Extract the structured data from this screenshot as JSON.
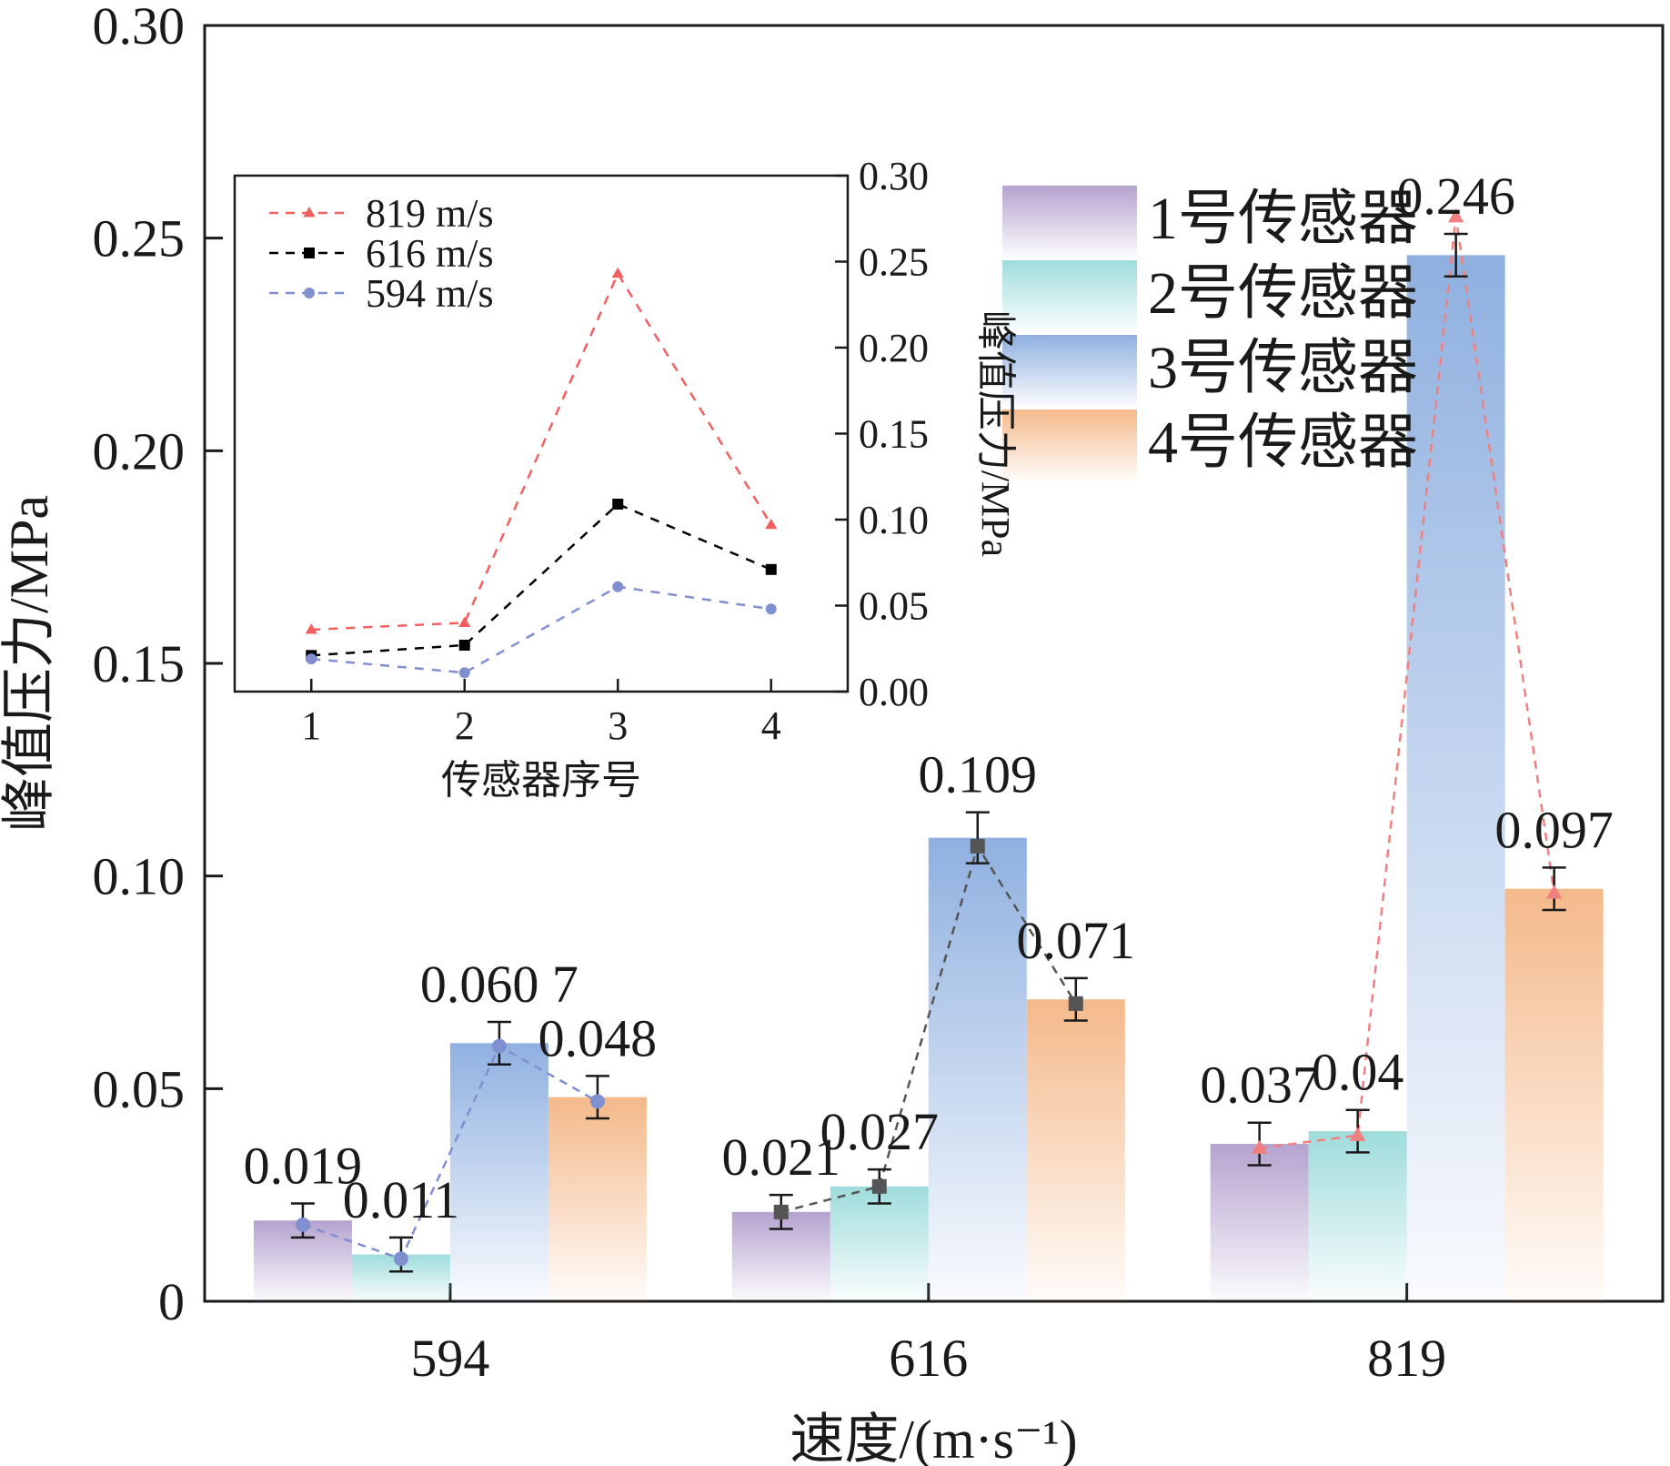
{
  "chart_data": [
    {
      "type": "bar",
      "xlabel": "速度/(m·s⁻¹)",
      "ylabel": "峰值压力/MPa",
      "ylim": [
        0,
        0.3
      ],
      "yticks": [
        "0",
        "0.05",
        "0.10",
        "0.15",
        "0.20",
        "0.25",
        "0.30"
      ],
      "categories": [
        "594",
        "616",
        "819"
      ],
      "series": [
        {
          "name": "1号传感器",
          "values": [
            0.019,
            0.021,
            0.037
          ],
          "labels": [
            "0.019",
            "0.021",
            "0.037"
          ],
          "errors": [
            0.004,
            0.004,
            0.005
          ],
          "color": "#b5a3cf"
        },
        {
          "name": "2号传感器",
          "values": [
            0.011,
            0.027,
            0.04
          ],
          "labels": [
            "0.011",
            "0.027",
            "0.04"
          ],
          "errors": [
            0.004,
            0.004,
            0.005
          ],
          "color": "#9fdcdc"
        },
        {
          "name": "3号传感器",
          "values": [
            0.0607,
            0.109,
            0.246
          ],
          "labels": [
            "0.060 7",
            "0.109",
            "0.246"
          ],
          "errors": [
            0.005,
            0.006,
            0.005
          ],
          "color": "#8fb0e0"
        },
        {
          "name": "4号传感器",
          "values": [
            0.048,
            0.071,
            0.097
          ],
          "labels": [
            "0.048",
            "0.071",
            "0.097"
          ],
          "errors": [
            0.005,
            0.005,
            0.005
          ],
          "color": "#f4b98a"
        }
      ],
      "overlay_lines": [
        {
          "category": "594",
          "color": "#7f8fd0",
          "marker": "circle",
          "values": [
            0.018,
            0.01,
            0.06,
            0.047
          ]
        },
        {
          "category": "616",
          "color": "#555555",
          "marker": "square",
          "values": [
            0.021,
            0.027,
            0.107,
            0.07
          ]
        },
        {
          "category": "819",
          "color": "#f08080",
          "marker": "triangle",
          "values": [
            0.036,
            0.039,
            0.255,
            0.096
          ]
        }
      ],
      "legend": "top-right"
    },
    {
      "type": "line",
      "xlabel": "传感器序号",
      "ylabel": "峰值压力/MPa",
      "x": [
        1,
        2,
        3,
        4
      ],
      "xticks": [
        "1",
        "2",
        "3",
        "4"
      ],
      "ylim": [
        0,
        0.3
      ],
      "yticks": [
        "0.00",
        "0.05",
        "0.10",
        "0.15",
        "0.20",
        "0.25",
        "0.30"
      ],
      "series": [
        {
          "name": "819 m/s",
          "values": [
            0.036,
            0.04,
            0.243,
            0.097
          ],
          "color": "#f06060",
          "marker": "triangle"
        },
        {
          "name": "616 m/s",
          "values": [
            0.021,
            0.027,
            0.109,
            0.071
          ],
          "color": "#000000",
          "marker": "square"
        },
        {
          "name": "594 m/s",
          "values": [
            0.019,
            0.011,
            0.061,
            0.048
          ],
          "color": "#7f8fd0",
          "marker": "circle"
        }
      ],
      "legend": "top-left"
    }
  ]
}
